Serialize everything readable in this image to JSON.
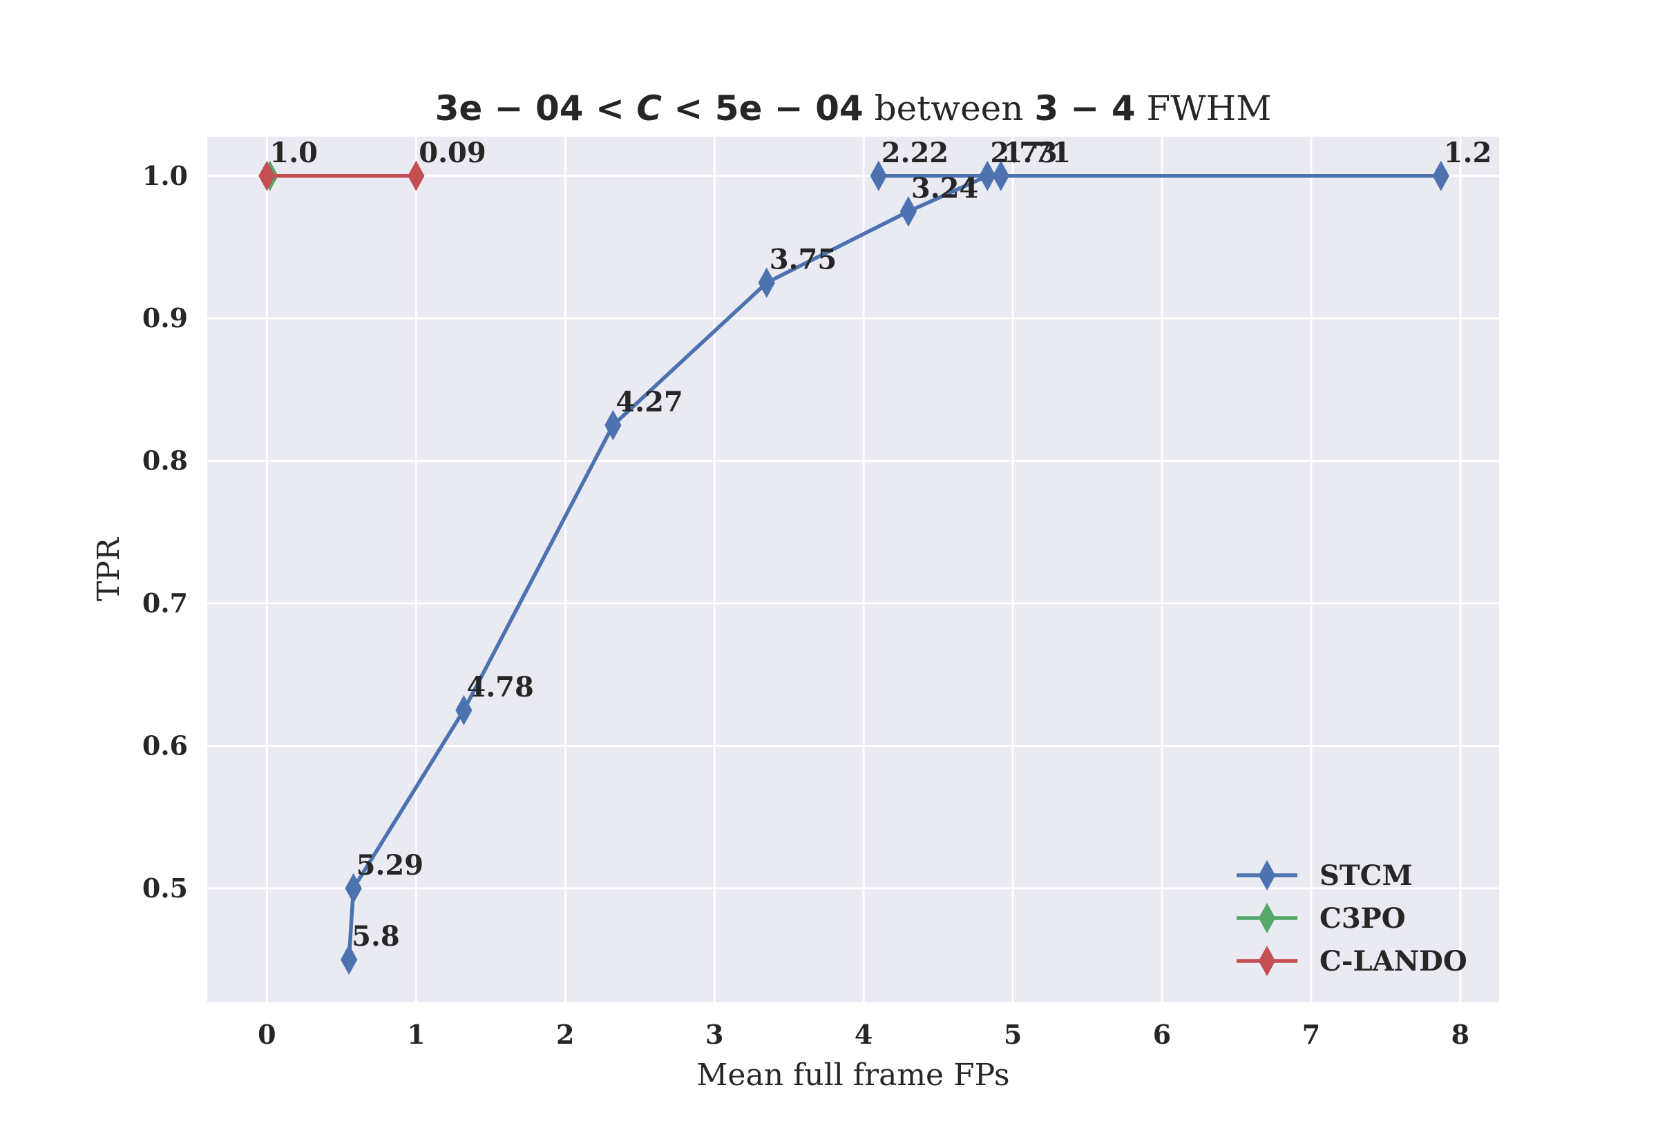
{
  "chart_data": {
    "type": "line",
    "title": {
      "math_left": "3e − 04 < ",
      "math_var": "C",
      "math_right": " < 5e − 04",
      "between": " between ",
      "range": "3 − 4",
      "unit": " FWHM"
    },
    "xlabel": "Mean full frame FPs",
    "ylabel": "TPR",
    "xlim": [
      -0.4,
      8.26
    ],
    "ylim": [
      0.42,
      1.0275
    ],
    "xticks": [
      0,
      1,
      2,
      3,
      4,
      5,
      6,
      7,
      8
    ],
    "yticks": [
      0.5,
      0.6,
      0.7,
      0.8,
      0.9,
      1.0
    ],
    "ytick_labels": [
      "0.5",
      "0.6",
      "0.7",
      "0.8",
      "0.9",
      "1.0"
    ],
    "grid": true,
    "legend_position": "lower-right",
    "series": [
      {
        "name": "STCM",
        "color": "#4c72b0",
        "marker": "thin_diamond",
        "points": [
          {
            "x": 0.55,
            "y": 0.45,
            "label": "5.8"
          },
          {
            "x": 0.58,
            "y": 0.5,
            "label": "5.29"
          },
          {
            "x": 1.32,
            "y": 0.625,
            "label": "4.78"
          },
          {
            "x": 2.32,
            "y": 0.825,
            "label": "4.27"
          },
          {
            "x": 3.35,
            "y": 0.925,
            "label": "3.75"
          },
          {
            "x": 4.3,
            "y": 0.975,
            "label": "3.24"
          },
          {
            "x": 4.83,
            "y": 1.0,
            "label": "2.73"
          },
          {
            "x": 4.92,
            "y": 1.0,
            "label": "1.71"
          },
          {
            "x": 7.87,
            "y": 1.0,
            "label": "1.2"
          },
          {
            "x": 4.1,
            "y": 1.0,
            "label": "2.22"
          }
        ]
      },
      {
        "name": "C3PO",
        "color": "#55a868",
        "marker": "thin_diamond",
        "points": [
          {
            "x": 0.02,
            "y": 1.0,
            "label": ""
          }
        ]
      },
      {
        "name": "C-LANDO",
        "color": "#c44e52",
        "marker": "thin_diamond",
        "points": [
          {
            "x": 0.0,
            "y": 1.0,
            "label": "1.0"
          },
          {
            "x": 1.0,
            "y": 1.0,
            "label": "0.09"
          }
        ]
      }
    ]
  }
}
